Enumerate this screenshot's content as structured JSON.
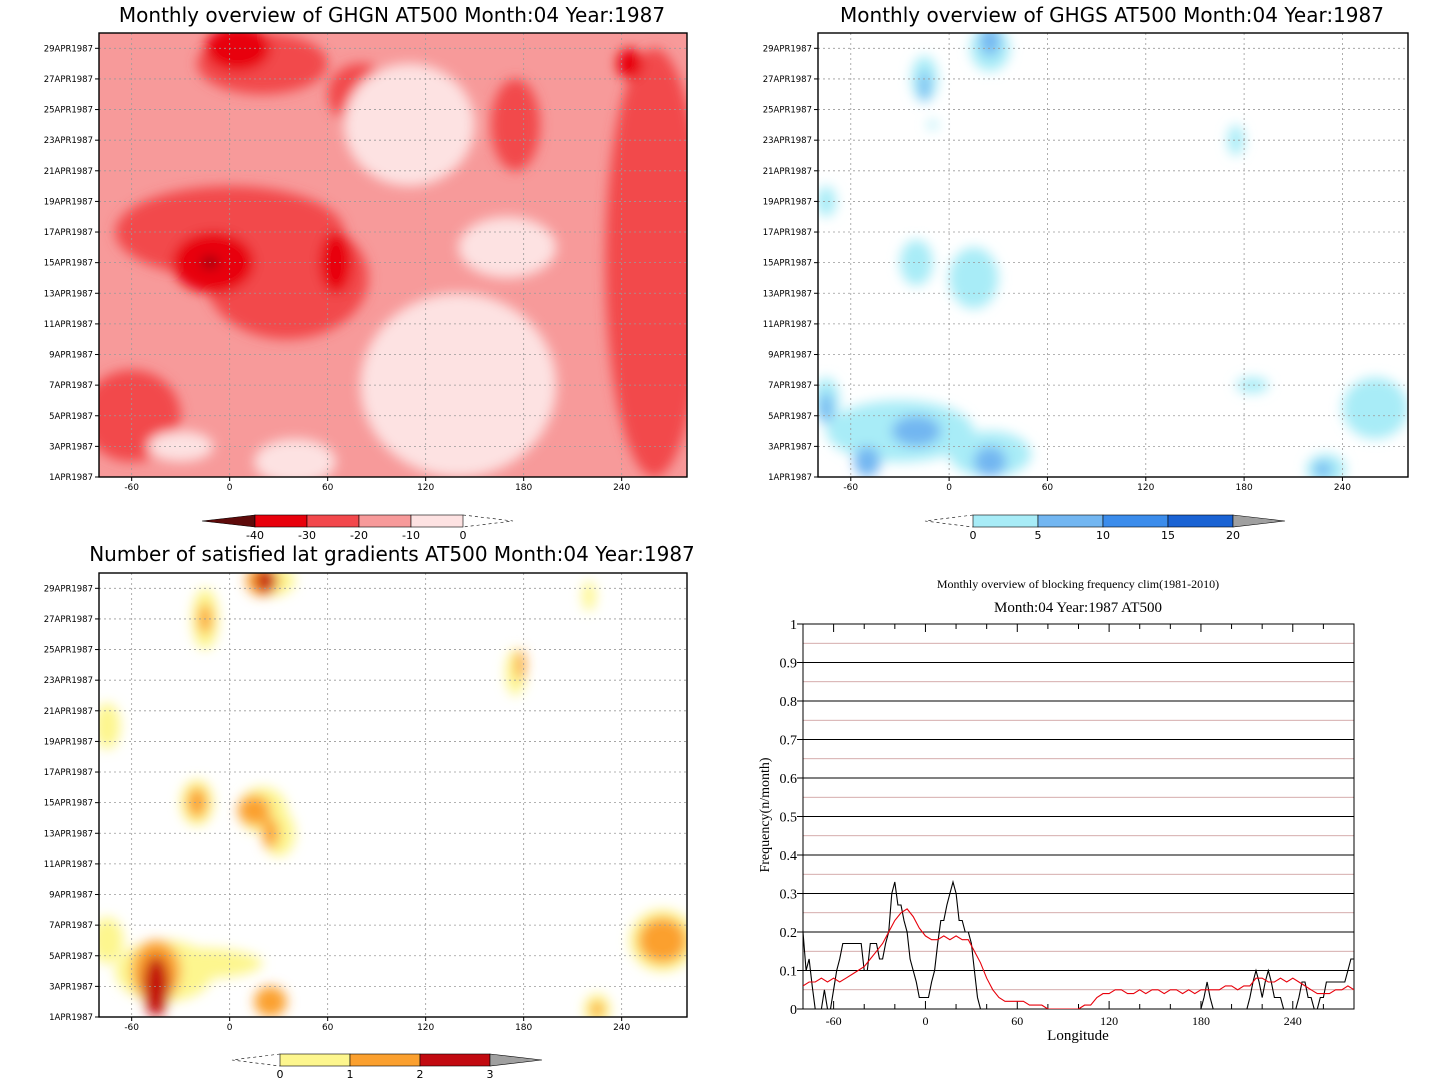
{
  "chart_data": [
    {
      "type": "heatmap",
      "title": "Monthly overview of GHGN AT500 Month:04 Year:1987",
      "x_ticks": [
        "-60",
        "0",
        "60",
        "120",
        "180",
        "240"
      ],
      "x_tick_values": [
        -60,
        0,
        60,
        120,
        180,
        240
      ],
      "xlim": [
        -80,
        280
      ],
      "y_ticks": [
        "1APR1987",
        "3APR1987",
        "5APR1987",
        "7APR1987",
        "9APR1987",
        "11APR1987",
        "13APR1987",
        "15APR1987",
        "17APR1987",
        "19APR1987",
        "21APR1987",
        "23APR1987",
        "25APR1987",
        "27APR1987",
        "29APR1987"
      ],
      "y_tick_days": [
        1,
        3,
        5,
        7,
        9,
        11,
        13,
        15,
        17,
        19,
        21,
        23,
        25,
        27,
        29
      ],
      "ylim": [
        1,
        30
      ],
      "colorbar": {
        "labels": [
          "-40",
          "-30",
          "-20",
          "-10",
          "0"
        ],
        "levels": [
          -40,
          -30,
          -20,
          -10,
          0
        ],
        "colors": [
          "#5e0a0a",
          "#e8000b",
          "#f2484c",
          "#f79a9a",
          "#fde2e2"
        ],
        "tail_left": "#5e0a0a",
        "tail_right": "none"
      },
      "regions": [
        {
          "level": -20,
          "x": 0,
          "y": 17,
          "rx": 70,
          "ry": 3
        },
        {
          "level": -20,
          "x": 35,
          "y": 14,
          "rx": 50,
          "ry": 4
        },
        {
          "level": -20,
          "x": -60,
          "y": 5,
          "rx": 30,
          "ry": 3
        },
        {
          "level": -20,
          "x": 260,
          "y": 15,
          "rx": 30,
          "ry": 14
        },
        {
          "level": -20,
          "x": 20,
          "y": 28,
          "rx": 40,
          "ry": 2
        },
        {
          "level": -20,
          "x": 175,
          "y": 24,
          "rx": 15,
          "ry": 3
        },
        {
          "level": -20,
          "x": 80,
          "y": 26,
          "rx": 20,
          "ry": 2
        },
        {
          "level": -30,
          "x": -10,
          "y": 15,
          "rx": 25,
          "ry": 2
        },
        {
          "level": -30,
          "x": 65,
          "y": 15,
          "rx": 10,
          "ry": 2
        },
        {
          "level": -30,
          "x": 5,
          "y": 29,
          "rx": 20,
          "ry": 1.5
        },
        {
          "level": -30,
          "x": 245,
          "y": 28,
          "rx": 8,
          "ry": 1
        },
        {
          "level": -40,
          "x": -12,
          "y": 15,
          "rx": 5,
          "ry": 0.3
        },
        {
          "level": -10,
          "x": 140,
          "y": 7,
          "rx": 60,
          "ry": 6
        },
        {
          "level": -10,
          "x": 110,
          "y": 24,
          "rx": 40,
          "ry": 4
        },
        {
          "level": -10,
          "x": 170,
          "y": 16,
          "rx": 30,
          "ry": 2
        },
        {
          "level": -10,
          "x": -30,
          "y": 3,
          "rx": 20,
          "ry": 1
        },
        {
          "level": -10,
          "x": 40,
          "y": 2,
          "rx": 25,
          "ry": 1.5
        }
      ]
    },
    {
      "type": "heatmap",
      "title": "Monthly overview of GHGS AT500 Month:04 Year:1987",
      "x_ticks": [
        "-60",
        "0",
        "60",
        "120",
        "180",
        "240"
      ],
      "x_tick_values": [
        -60,
        0,
        60,
        120,
        180,
        240
      ],
      "xlim": [
        -80,
        280
      ],
      "y_ticks": [
        "1APR1987",
        "3APR1987",
        "5APR1987",
        "7APR1987",
        "9APR1987",
        "11APR1987",
        "13APR1987",
        "15APR1987",
        "17APR1987",
        "19APR1987",
        "21APR1987",
        "23APR1987",
        "25APR1987",
        "27APR1987",
        "29APR1987"
      ],
      "y_tick_days": [
        1,
        3,
        5,
        7,
        9,
        11,
        13,
        15,
        17,
        19,
        21,
        23,
        25,
        27,
        29
      ],
      "ylim": [
        1,
        30
      ],
      "colorbar": {
        "labels": [
          "0",
          "5",
          "10",
          "15",
          "20"
        ],
        "levels": [
          0,
          5,
          10,
          15,
          20
        ],
        "colors": [
          "#a8ecf7",
          "#72b6f1",
          "#3b8ceb",
          "#1a63d4"
        ],
        "tail_left": "none",
        "tail_right": "#a0a0a0"
      },
      "regions": [
        {
          "level": 0,
          "x": 25,
          "y": 29,
          "rx": 12,
          "ry": 1.5
        },
        {
          "level": 0,
          "x": -15,
          "y": 27,
          "rx": 8,
          "ry": 1.5
        },
        {
          "level": 0,
          "x": -10,
          "y": 24,
          "rx": 3,
          "ry": 0.3
        },
        {
          "level": 0,
          "x": 175,
          "y": 23,
          "rx": 5,
          "ry": 1
        },
        {
          "level": 0,
          "x": -75,
          "y": 19,
          "rx": 6,
          "ry": 1
        },
        {
          "level": 0,
          "x": -20,
          "y": 15,
          "rx": 10,
          "ry": 1.5
        },
        {
          "level": 0,
          "x": 15,
          "y": 14,
          "rx": 15,
          "ry": 2
        },
        {
          "level": 0,
          "x": -30,
          "y": 4,
          "rx": 45,
          "ry": 2
        },
        {
          "level": 0,
          "x": 25,
          "y": 2.5,
          "rx": 25,
          "ry": 1.5
        },
        {
          "level": 0,
          "x": -75,
          "y": 6,
          "rx": 8,
          "ry": 1.5
        },
        {
          "level": 0,
          "x": 185,
          "y": 7,
          "rx": 10,
          "ry": 0.5
        },
        {
          "level": 0,
          "x": 260,
          "y": 5.5,
          "rx": 20,
          "ry": 2
        },
        {
          "level": 0,
          "x": 230,
          "y": 1.5,
          "rx": 12,
          "ry": 1
        },
        {
          "level": 5,
          "x": 25,
          "y": 29.5,
          "rx": 6,
          "ry": 1
        },
        {
          "level": 5,
          "x": -15,
          "y": 26.5,
          "rx": 3,
          "ry": 1
        },
        {
          "level": 5,
          "x": -20,
          "y": 4,
          "rx": 15,
          "ry": 1
        },
        {
          "level": 5,
          "x": -50,
          "y": 2,
          "rx": 8,
          "ry": 1
        },
        {
          "level": 5,
          "x": 25,
          "y": 2,
          "rx": 10,
          "ry": 1
        },
        {
          "level": 5,
          "x": -75,
          "y": 5.5,
          "rx": 4,
          "ry": 1
        },
        {
          "level": 5,
          "x": 228,
          "y": 1.5,
          "rx": 5,
          "ry": 0.5
        }
      ]
    },
    {
      "type": "heatmap",
      "title": "Number of satisfied lat gradients AT500 Month:04 Year:1987",
      "x_ticks": [
        "-60",
        "0",
        "60",
        "120",
        "180",
        "240"
      ],
      "x_tick_values": [
        -60,
        0,
        60,
        120,
        180,
        240
      ],
      "xlim": [
        -80,
        280
      ],
      "y_ticks": [
        "1APR1987",
        "3APR1987",
        "5APR1987",
        "7APR1987",
        "9APR1987",
        "11APR1987",
        "13APR1987",
        "15APR1987",
        "17APR1987",
        "19APR1987",
        "21APR1987",
        "23APR1987",
        "25APR1987",
        "27APR1987",
        "29APR1987"
      ],
      "y_tick_days": [
        1,
        3,
        5,
        7,
        9,
        11,
        13,
        15,
        17,
        19,
        21,
        23,
        25,
        27,
        29
      ],
      "ylim": [
        1,
        30
      ],
      "colorbar": {
        "labels": [
          "0",
          "1",
          "2",
          "3"
        ],
        "levels": [
          0,
          1,
          2,
          3
        ],
        "colors": [
          "#fdf68e",
          "#fba02f",
          "#c20a10"
        ],
        "tail_left": "none",
        "tail_right": "#a0a0a0"
      },
      "regions": [
        {
          "level": 0,
          "x": -40,
          "y": 4,
          "rx": 30,
          "ry": 2
        },
        {
          "level": 0,
          "x": -20,
          "y": 4.5,
          "rx": 40,
          "ry": 1
        },
        {
          "level": 0,
          "x": -20,
          "y": 15,
          "rx": 10,
          "ry": 1.5
        },
        {
          "level": 0,
          "x": 20,
          "y": 14.5,
          "rx": 15,
          "ry": 1.5
        },
        {
          "level": 0,
          "x": 30,
          "y": 13,
          "rx": 10,
          "ry": 1.5
        },
        {
          "level": 0,
          "x": -15,
          "y": 27,
          "rx": 8,
          "ry": 2
        },
        {
          "level": 0,
          "x": 25,
          "y": 29.5,
          "rx": 15,
          "ry": 1
        },
        {
          "level": 0,
          "x": 175,
          "y": 23.5,
          "rx": 6,
          "ry": 1.5
        },
        {
          "level": 0,
          "x": 220,
          "y": 28.5,
          "rx": 4,
          "ry": 1
        },
        {
          "level": 0,
          "x": -75,
          "y": 20,
          "rx": 8,
          "ry": 1.5
        },
        {
          "level": 0,
          "x": -75,
          "y": 6,
          "rx": 10,
          "ry": 1.5
        },
        {
          "level": 0,
          "x": 265,
          "y": 6,
          "rx": 20,
          "ry": 2
        },
        {
          "level": 0,
          "x": 225,
          "y": 1.5,
          "rx": 8,
          "ry": 1
        },
        {
          "level": 1,
          "x": -45,
          "y": 4,
          "rx": 15,
          "ry": 2
        },
        {
          "level": 1,
          "x": -20,
          "y": 15,
          "rx": 6,
          "ry": 1
        },
        {
          "level": 1,
          "x": 15,
          "y": 14.5,
          "rx": 10,
          "ry": 1
        },
        {
          "level": 1,
          "x": 25,
          "y": 13,
          "rx": 5,
          "ry": 1
        },
        {
          "level": 1,
          "x": -15,
          "y": 27,
          "rx": 4,
          "ry": 1
        },
        {
          "level": 1,
          "x": 20,
          "y": 29.5,
          "rx": 10,
          "ry": 1
        },
        {
          "level": 1,
          "x": 25,
          "y": 2,
          "rx": 10,
          "ry": 1
        },
        {
          "level": 1,
          "x": 265,
          "y": 6,
          "rx": 15,
          "ry": 1.5
        },
        {
          "level": 1,
          "x": 225,
          "y": 1.5,
          "rx": 4,
          "ry": 0.5
        },
        {
          "level": 1,
          "x": 178,
          "y": 24,
          "rx": 3,
          "ry": 1
        },
        {
          "level": 2,
          "x": -45,
          "y": 3,
          "rx": 8,
          "ry": 2
        },
        {
          "level": 2,
          "x": 22,
          "y": 29.5,
          "rx": 6,
          "ry": 0.8
        }
      ]
    },
    {
      "type": "line",
      "title": "Monthly overview of blocking frequency clim(1981-2010)",
      "subtitle": "Month:04 Year:1987  AT500",
      "xlabel": "Longitude",
      "ylabel": "Frequency(n/month)",
      "xlim": [
        -80,
        280
      ],
      "ylim": [
        0,
        1
      ],
      "x_ticks": [
        "-60",
        "0",
        "60",
        "120",
        "180",
        "240"
      ],
      "x_tick_values": [
        -60,
        0,
        60,
        120,
        180,
        240
      ],
      "y_ticks": [
        "0",
        "0.1",
        "0.2",
        "0.3",
        "0.4",
        "0.5",
        "0.6",
        "0.7",
        "0.8",
        "0.9",
        "1"
      ],
      "y_tick_values": [
        0,
        0.1,
        0.2,
        0.3,
        0.4,
        0.5,
        0.6,
        0.7,
        0.8,
        0.9,
        1
      ],
      "grid": "horizontal",
      "series": [
        {
          "color": "#000000",
          "x": [
            -80,
            -78,
            -76,
            -74,
            -72,
            -70,
            -68,
            -66,
            -64,
            -62,
            -58,
            -56,
            -54,
            -52,
            -50,
            -48,
            -46,
            -44,
            -42,
            -40,
            -38,
            -36,
            -34,
            -32,
            -30,
            -28,
            -26,
            -24,
            -22,
            -20,
            -18,
            -16,
            -14,
            -12,
            -10,
            -8,
            -6,
            -4,
            -2,
            0,
            2,
            4,
            6,
            8,
            10,
            12,
            14,
            16,
            18,
            20,
            22,
            24,
            26,
            28,
            30,
            32,
            34,
            36,
            38,
            40,
            42,
            180,
            182,
            184,
            186,
            188,
            190,
            210,
            212,
            214,
            216,
            218,
            220,
            222,
            224,
            226,
            228,
            230,
            232,
            234,
            236,
            238,
            240,
            242,
            244,
            246,
            248,
            250,
            252,
            254,
            256,
            258,
            260,
            262,
            264,
            266,
            268,
            270,
            272,
            274,
            276,
            278,
            280
          ],
          "y": [
            0.2,
            0.1,
            0.13,
            0.06,
            0,
            0,
            0,
            0.05,
            0,
            0,
            0.1,
            0.13,
            0.17,
            0.17,
            0.17,
            0.17,
            0.17,
            0.17,
            0.17,
            0.1,
            0.1,
            0.17,
            0.17,
            0.17,
            0.13,
            0.13,
            0.17,
            0.2,
            0.3,
            0.33,
            0.27,
            0.27,
            0.23,
            0.2,
            0.13,
            0.1,
            0.07,
            0.03,
            0.03,
            0.03,
            0.03,
            0.07,
            0.1,
            0.17,
            0.23,
            0.23,
            0.27,
            0.3,
            0.33,
            0.3,
            0.23,
            0.23,
            0.2,
            0.2,
            0.17,
            0.1,
            0.03,
            0,
            0,
            0,
            0,
            0,
            0.03,
            0.07,
            0.03,
            0,
            0,
            0,
            0.03,
            0.07,
            0.1,
            0.07,
            0.03,
            0.07,
            0.1,
            0.07,
            0.03,
            0.03,
            0.03,
            0,
            0,
            0,
            0,
            0,
            0.03,
            0.07,
            0.07,
            0.03,
            0.03,
            0,
            0,
            0.03,
            0.03,
            0.07,
            0.07,
            0.07,
            0.07,
            0.07,
            0.07,
            0.07,
            0.1,
            0.13,
            0.13
          ]
        },
        {
          "color": "#e8000b",
          "x": [
            -80,
            -76,
            -72,
            -68,
            -64,
            -60,
            -56,
            -52,
            -48,
            -44,
            -40,
            -36,
            -32,
            -28,
            -24,
            -20,
            -16,
            -12,
            -8,
            -4,
            0,
            4,
            8,
            12,
            16,
            20,
            24,
            28,
            32,
            36,
            40,
            44,
            48,
            52,
            56,
            60,
            64,
            68,
            72,
            76,
            80,
            84,
            88,
            92,
            96,
            100,
            104,
            108,
            112,
            116,
            120,
            124,
            128,
            132,
            136,
            140,
            144,
            148,
            152,
            156,
            160,
            164,
            168,
            172,
            176,
            180,
            184,
            188,
            192,
            196,
            200,
            204,
            208,
            212,
            216,
            220,
            224,
            228,
            232,
            236,
            240,
            244,
            248,
            252,
            256,
            260,
            264,
            268,
            272,
            276,
            280
          ],
          "y": [
            0.06,
            0.07,
            0.07,
            0.08,
            0.07,
            0.08,
            0.07,
            0.08,
            0.09,
            0.1,
            0.11,
            0.13,
            0.15,
            0.17,
            0.2,
            0.23,
            0.25,
            0.26,
            0.24,
            0.21,
            0.19,
            0.18,
            0.18,
            0.19,
            0.18,
            0.19,
            0.18,
            0.18,
            0.15,
            0.12,
            0.08,
            0.05,
            0.03,
            0.02,
            0.02,
            0.02,
            0.02,
            0.01,
            0.01,
            0.01,
            0,
            0,
            0,
            0,
            0,
            0,
            0.01,
            0.01,
            0.03,
            0.04,
            0.04,
            0.05,
            0.05,
            0.04,
            0.04,
            0.05,
            0.04,
            0.05,
            0.05,
            0.04,
            0.05,
            0.05,
            0.04,
            0.05,
            0.04,
            0.05,
            0.05,
            0.05,
            0.05,
            0.06,
            0.06,
            0.05,
            0.06,
            0.06,
            0.08,
            0.08,
            0.07,
            0.07,
            0.08,
            0.07,
            0.08,
            0.07,
            0.06,
            0.05,
            0.04,
            0.04,
            0.04,
            0.05,
            0.05,
            0.06,
            0.05
          ]
        }
      ]
    }
  ]
}
